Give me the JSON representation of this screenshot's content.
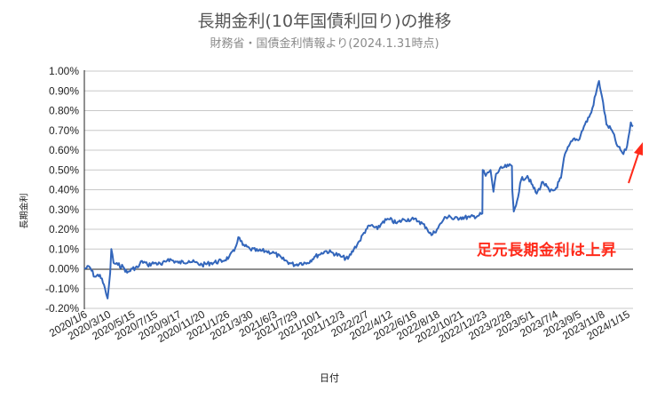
{
  "title": "長期金利(10年国債利回り)の推移",
  "subtitle": "財務省・国債金利情報より(2024.1.31時点)",
  "annotation": "足元長期金利は上昇",
  "colors": {
    "line": "#3366bb",
    "arrow": "#ff2a1a",
    "grid": "#c8c8c8",
    "axis": "#222222"
  },
  "chart_data": {
    "type": "line",
    "title": "長期金利(10年国債利回り)の推移",
    "subtitle": "財務省・国債金利情報より(2024.1.31時点)",
    "xlabel": "日付",
    "ylabel": "長期金利",
    "ylim": [
      -0.2,
      1.0
    ],
    "y_ticks": [
      "1.00%",
      "0.90%",
      "0.80%",
      "0.70%",
      "0.60%",
      "0.50%",
      "0.40%",
      "0.30%",
      "0.20%",
      "0.10%",
      "0.00%",
      "-0.10%",
      "-0.20%"
    ],
    "x_ticks": [
      "2020/1/6",
      "2020/3/10",
      "2020/5/15",
      "2020/7/15",
      "2020/9/17",
      "2020/11/20",
      "2021/1/26",
      "2021/3/30",
      "2021/6/3",
      "2021/7/29",
      "2021/10/1",
      "2021/12/3",
      "2022/2/7",
      "2022/4/12",
      "2022/6/16",
      "2022/8/18",
      "2022/10/21",
      "2022/12/23",
      "2023/2/28",
      "2023/5/1",
      "2023/7/4",
      "2023/9/5",
      "2023/11/8",
      "2024/1/15"
    ],
    "grid": true,
    "legend": "none",
    "series": [
      {
        "name": "長期金利",
        "points": [
          [
            "2020/1/6",
            0.0
          ],
          [
            "2020/1/20",
            0.01
          ],
          [
            "2020/2/3",
            -0.04
          ],
          [
            "2020/2/17",
            -0.03
          ],
          [
            "2020/3/2",
            -0.1
          ],
          [
            "2020/3/9",
            -0.15
          ],
          [
            "2020/3/16",
            -0.02
          ],
          [
            "2020/3/19",
            0.1
          ],
          [
            "2020/3/25",
            0.03
          ],
          [
            "2020/4/6",
            0.02
          ],
          [
            "2020/4/20",
            0.01
          ],
          [
            "2020/5/1",
            -0.02
          ],
          [
            "2020/5/15",
            0.0
          ],
          [
            "2020/6/1",
            0.01
          ],
          [
            "2020/6/10",
            0.04
          ],
          [
            "2020/6/25",
            0.02
          ],
          [
            "2020/7/15",
            0.03
          ],
          [
            "2020/8/3",
            0.02
          ],
          [
            "2020/8/20",
            0.05
          ],
          [
            "2020/9/17",
            0.03
          ],
          [
            "2020/10/15",
            0.04
          ],
          [
            "2020/11/20",
            0.02
          ],
          [
            "2020/12/15",
            0.03
          ],
          [
            "2021/1/15",
            0.04
          ],
          [
            "2021/2/1",
            0.06
          ],
          [
            "2021/2/15",
            0.09
          ],
          [
            "2021/2/26",
            0.16
          ],
          [
            "2021/3/10",
            0.12
          ],
          [
            "2021/3/30",
            0.1
          ],
          [
            "2021/4/20",
            0.09
          ],
          [
            "2021/5/10",
            0.09
          ],
          [
            "2021/6/3",
            0.08
          ],
          [
            "2021/6/25",
            0.05
          ],
          [
            "2021/7/15",
            0.03
          ],
          [
            "2021/7/29",
            0.02
          ],
          [
            "2021/8/15",
            0.03
          ],
          [
            "2021/9/1",
            0.03
          ],
          [
            "2021/9/20",
            0.06
          ],
          [
            "2021/10/1",
            0.07
          ],
          [
            "2021/10/20",
            0.09
          ],
          [
            "2021/11/10",
            0.08
          ],
          [
            "2021/12/3",
            0.06
          ],
          [
            "2021/12/20",
            0.05
          ],
          [
            "2022/1/5",
            0.1
          ],
          [
            "2022/1/20",
            0.14
          ],
          [
            "2022/2/7",
            0.2
          ],
          [
            "2022/2/20",
            0.22
          ],
          [
            "2022/3/10",
            0.2
          ],
          [
            "2022/3/25",
            0.24
          ],
          [
            "2022/4/12",
            0.25
          ],
          [
            "2022/5/1",
            0.23
          ],
          [
            "2022/5/20",
            0.25
          ],
          [
            "2022/6/16",
            0.25
          ],
          [
            "2022/7/1",
            0.24
          ],
          [
            "2022/7/20",
            0.21
          ],
          [
            "2022/8/3",
            0.17
          ],
          [
            "2022/8/18",
            0.2
          ],
          [
            "2022/9/5",
            0.25
          ],
          [
            "2022/9/20",
            0.27
          ],
          [
            "2022/10/1",
            0.25
          ],
          [
            "2022/10/21",
            0.26
          ],
          [
            "2022/11/15",
            0.26
          ],
          [
            "2022/12/10",
            0.27
          ],
          [
            "2022/12/19",
            0.28
          ],
          [
            "2022/12/20",
            0.5
          ],
          [
            "2022/12/28",
            0.47
          ],
          [
            "2023/1/10",
            0.5
          ],
          [
            "2023/1/18",
            0.39
          ],
          [
            "2023/1/25",
            0.48
          ],
          [
            "2023/2/10",
            0.51
          ],
          [
            "2023/2/28",
            0.52
          ],
          [
            "2023/3/9",
            0.52
          ],
          [
            "2023/3/10",
            0.4
          ],
          [
            "2023/3/14",
            0.29
          ],
          [
            "2023/3/20",
            0.32
          ],
          [
            "2023/4/3",
            0.45
          ],
          [
            "2023/4/20",
            0.47
          ],
          [
            "2023/5/1",
            0.43
          ],
          [
            "2023/5/15",
            0.38
          ],
          [
            "2023/6/1",
            0.44
          ],
          [
            "2023/6/20",
            0.39
          ],
          [
            "2023/7/4",
            0.4
          ],
          [
            "2023/7/20",
            0.46
          ],
          [
            "2023/7/28",
            0.56
          ],
          [
            "2023/8/10",
            0.62
          ],
          [
            "2023/8/25",
            0.66
          ],
          [
            "2023/9/5",
            0.65
          ],
          [
            "2023/9/20",
            0.72
          ],
          [
            "2023/10/10",
            0.79
          ],
          [
            "2023/10/31",
            0.95
          ],
          [
            "2023/11/8",
            0.87
          ],
          [
            "2023/11/20",
            0.73
          ],
          [
            "2023/12/5",
            0.7
          ],
          [
            "2023/12/20",
            0.62
          ],
          [
            "2024/1/5",
            0.58
          ],
          [
            "2024/1/15",
            0.62
          ],
          [
            "2024/1/25",
            0.74
          ],
          [
            "2024/1/31",
            0.72
          ]
        ]
      }
    ]
  }
}
